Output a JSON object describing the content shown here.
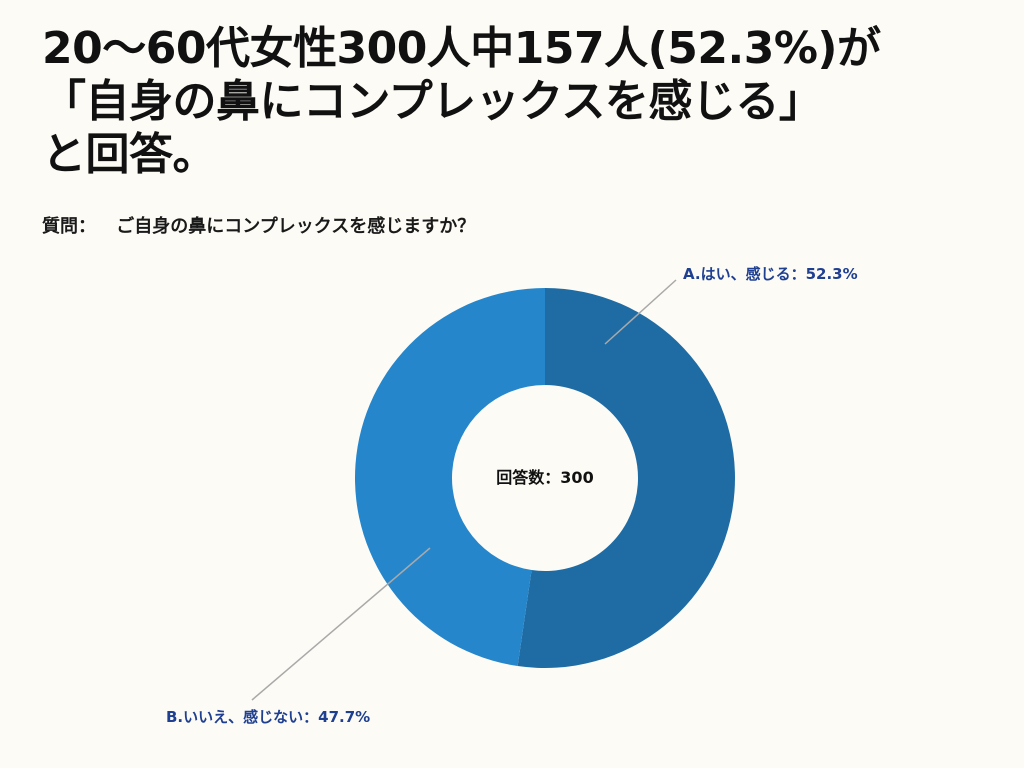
{
  "title": {
    "lines": [
      "20〜60代女性300人中157人(52.3%)が",
      "「自身の鼻にコンプレックスを感じる」",
      "と回答。"
    ]
  },
  "question": {
    "label": "質問：",
    "text": "ご自身の鼻にコンプレックスを感じますか？"
  },
  "chart_data": {
    "type": "pie",
    "style": "donut",
    "center_label": "回答数：300",
    "total": 300,
    "series": [
      {
        "label": "A.はい、感じる：52.3%",
        "value": 52.3,
        "color": "#1f6ca5"
      },
      {
        "label": "B.いいえ、感じない：47.7%",
        "value": 47.7,
        "color": "#2686cb"
      }
    ],
    "label_color": "#1f3f91",
    "leader_line_color": "#a9a9a9"
  }
}
